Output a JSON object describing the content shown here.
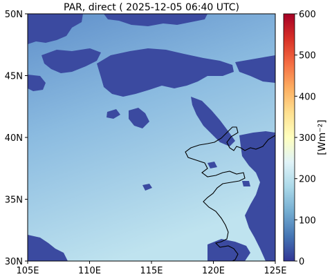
{
  "title": "PAR, direct ( 2025-12-05 06:40 UTC)",
  "map": {
    "x_ticks": [
      "105E",
      "110E",
      "115E",
      "120E",
      "125E"
    ],
    "y_ticks": [
      "50N",
      "45N",
      "40N",
      "35N",
      "30N"
    ],
    "lon_range": [
      105,
      125
    ],
    "lat_range": [
      30,
      50
    ]
  },
  "colorbar": {
    "label": "[Wm⁻²]",
    "ticks": [
      "600",
      "500",
      "400",
      "300",
      "200",
      "100",
      "0"
    ],
    "range": [
      0,
      600
    ],
    "colormap": "RdYlBu_r",
    "colors": [
      "#313695",
      "#4575b4",
      "#74add1",
      "#abd9e9",
      "#e0f3f8",
      "#ffffbf",
      "#fee090",
      "#fdae61",
      "#f46d43",
      "#d73027",
      "#a50026"
    ]
  },
  "field_colors": {
    "cloud": "#3b4aa0",
    "clear_north": "#6d9dcf",
    "clear_south": "#b6dcec"
  }
}
